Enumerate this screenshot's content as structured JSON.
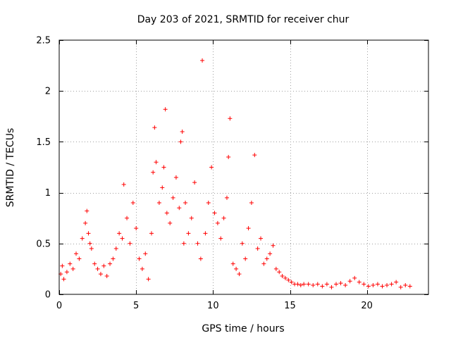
{
  "colors": {
    "points": "#ff0000",
    "grid": "#a0a0a0",
    "axis": "#000000",
    "background": "#ffffff"
  },
  "chart_data": {
    "type": "scatter",
    "title": "Day 203 of 2021, SRMTID for receiver chur",
    "xlabel": "GPS time / hours",
    "ylabel": "SRMTID / TECUs",
    "xlim": [
      0,
      24
    ],
    "ylim": [
      0,
      2.5
    ],
    "xticks": [
      0,
      5,
      10,
      15,
      20
    ],
    "xtick_labels": [
      "0",
      "5",
      "10",
      "15",
      "20"
    ],
    "yticks": [
      0,
      0.5,
      1,
      1.5,
      2,
      2.5
    ],
    "ytick_labels": [
      "0",
      "0.5",
      "1",
      "1.5",
      "2",
      "2.5"
    ],
    "grid": true,
    "marker": "+",
    "series": [
      {
        "name": "SRMTID",
        "x": [
          0.1,
          0.2,
          0.3,
          0.5,
          0.7,
          0.9,
          1.1,
          1.3,
          1.5,
          1.7,
          1.8,
          1.9,
          2.0,
          2.1,
          2.3,
          2.5,
          2.7,
          2.9,
          3.1,
          3.3,
          3.5,
          3.7,
          3.9,
          4.1,
          4.2,
          4.4,
          4.6,
          4.8,
          5.0,
          5.2,
          5.4,
          5.6,
          5.8,
          6.0,
          6.1,
          6.2,
          6.3,
          6.5,
          6.7,
          6.8,
          6.9,
          7.0,
          7.2,
          7.4,
          7.6,
          7.8,
          7.9,
          8.0,
          8.1,
          8.2,
          8.4,
          8.6,
          8.8,
          9.0,
          9.2,
          9.3,
          9.5,
          9.7,
          9.9,
          10.1,
          10.3,
          10.5,
          10.7,
          10.9,
          11.0,
          11.1,
          11.3,
          11.5,
          11.7,
          11.9,
          12.1,
          12.3,
          12.5,
          12.7,
          12.9,
          13.1,
          13.3,
          13.5,
          13.7,
          13.9,
          14.1,
          14.3,
          14.5,
          14.7,
          14.9,
          15.1,
          15.3,
          15.5,
          15.7,
          15.9,
          16.2,
          16.5,
          16.8,
          17.1,
          17.4,
          17.7,
          18.0,
          18.3,
          18.6,
          18.9,
          19.2,
          19.5,
          19.8,
          20.1,
          20.4,
          20.7,
          21.0,
          21.3,
          21.6,
          21.9,
          22.2,
          22.5,
          22.8
        ],
        "y": [
          0.2,
          0.28,
          0.15,
          0.22,
          0.3,
          0.25,
          0.4,
          0.35,
          0.55,
          0.7,
          0.82,
          0.6,
          0.5,
          0.45,
          0.3,
          0.25,
          0.2,
          0.28,
          0.18,
          0.3,
          0.35,
          0.45,
          0.6,
          0.55,
          1.08,
          0.75,
          0.5,
          0.9,
          0.65,
          0.35,
          0.25,
          0.4,
          0.15,
          0.6,
          1.2,
          1.64,
          1.3,
          0.9,
          1.05,
          1.25,
          1.82,
          0.8,
          0.7,
          0.95,
          1.15,
          0.85,
          1.5,
          1.6,
          0.5,
          0.9,
          0.6,
          0.75,
          1.1,
          0.5,
          0.35,
          2.3,
          0.6,
          0.9,
          1.25,
          0.8,
          0.7,
          0.55,
          0.75,
          0.95,
          1.35,
          1.73,
          0.3,
          0.25,
          0.2,
          0.5,
          0.35,
          0.65,
          0.9,
          1.37,
          0.45,
          0.55,
          0.3,
          0.35,
          0.4,
          0.48,
          0.25,
          0.22,
          0.18,
          0.16,
          0.14,
          0.12,
          0.1,
          0.1,
          0.09,
          0.1,
          0.1,
          0.09,
          0.1,
          0.08,
          0.1,
          0.07,
          0.1,
          0.11,
          0.09,
          0.13,
          0.16,
          0.12,
          0.1,
          0.08,
          0.09,
          0.1,
          0.08,
          0.09,
          0.1,
          0.12,
          0.07,
          0.09,
          0.08
        ]
      }
    ]
  }
}
